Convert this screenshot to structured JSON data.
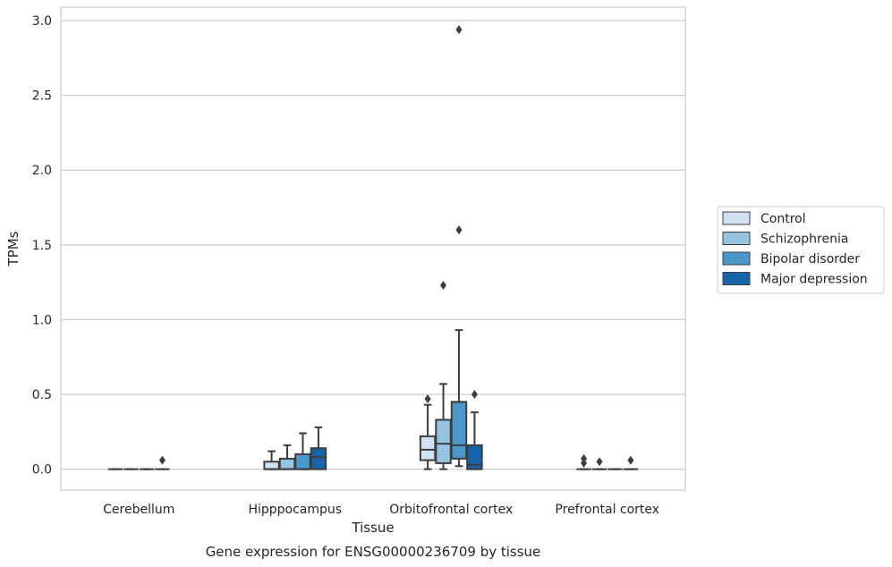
{
  "chart_data": {
    "type": "box",
    "title": "",
    "caption": "Gene expression for ENSG00000236709 by tissue",
    "xlabel": "Tissue",
    "ylabel": "TPMs",
    "ylim": [
      -0.14,
      3.09
    ],
    "yticks": [
      0.0,
      0.5,
      1.0,
      1.5,
      2.0,
      2.5,
      3.0
    ],
    "ytick_labels": [
      "0.0",
      "0.5",
      "1.0",
      "1.5",
      "2.0",
      "2.5",
      "3.0"
    ],
    "grid": "y",
    "legend_position": "right",
    "categories": [
      "Cerebellum",
      "Hipppocampus",
      "Orbitofrontal cortex",
      "Prefrontal cortex"
    ],
    "series": [
      {
        "name": "Control",
        "color": "#d0e1f2",
        "boxes": [
          {
            "min": 0,
            "q1": 0,
            "median": 0,
            "q3": 0,
            "max": 0,
            "outliers": []
          },
          {
            "min": 0,
            "q1": 0,
            "median": 0,
            "q3": 0.05,
            "max": 0.12,
            "outliers": []
          },
          {
            "min": 0,
            "q1": 0.06,
            "median": 0.13,
            "q3": 0.22,
            "max": 0.43,
            "outliers": [
              0.47
            ]
          },
          {
            "min": 0,
            "q1": 0,
            "median": 0,
            "q3": 0,
            "max": 0,
            "outliers": [
              0.04,
              0.07
            ]
          }
        ]
      },
      {
        "name": "Schizophrenia",
        "color": "#94c4df",
        "boxes": [
          {
            "min": 0,
            "q1": 0,
            "median": 0,
            "q3": 0,
            "max": 0,
            "outliers": []
          },
          {
            "min": 0,
            "q1": 0,
            "median": 0,
            "q3": 0.07,
            "max": 0.16,
            "outliers": []
          },
          {
            "min": 0,
            "q1": 0.04,
            "median": 0.17,
            "q3": 0.33,
            "max": 0.57,
            "outliers": [
              1.23
            ]
          },
          {
            "min": 0,
            "q1": 0,
            "median": 0,
            "q3": 0,
            "max": 0,
            "outliers": [
              0.05
            ]
          }
        ]
      },
      {
        "name": "Bipolar disorder",
        "color": "#4a98c9",
        "boxes": [
          {
            "min": 0,
            "q1": 0,
            "median": 0,
            "q3": 0,
            "max": 0,
            "outliers": []
          },
          {
            "min": 0,
            "q1": 0,
            "median": 0,
            "q3": 0.1,
            "max": 0.24,
            "outliers": []
          },
          {
            "min": 0.02,
            "q1": 0.07,
            "median": 0.16,
            "q3": 0.45,
            "max": 0.93,
            "outliers": [
              1.6,
              2.94
            ]
          },
          {
            "min": 0,
            "q1": 0,
            "median": 0,
            "q3": 0,
            "max": 0,
            "outliers": []
          }
        ]
      },
      {
        "name": "Major depression",
        "color": "#1764ab",
        "boxes": [
          {
            "min": 0,
            "q1": 0,
            "median": 0,
            "q3": 0,
            "max": 0,
            "outliers": [
              0.06
            ]
          },
          {
            "min": 0,
            "q1": 0,
            "median": 0.08,
            "q3": 0.14,
            "max": 0.28,
            "outliers": []
          },
          {
            "min": 0,
            "q1": 0,
            "median": 0.03,
            "q3": 0.16,
            "max": 0.38,
            "outliers": [
              0.5
            ]
          },
          {
            "min": 0,
            "q1": 0,
            "median": 0,
            "q3": 0,
            "max": 0,
            "outliers": [
              0.06
            ]
          }
        ]
      }
    ]
  }
}
